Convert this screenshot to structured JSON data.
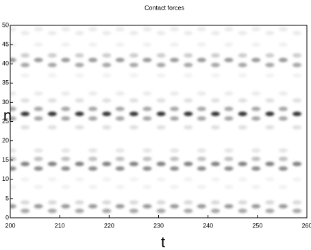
{
  "chart_data": {
    "type": "heatmap",
    "title": "Contact forces",
    "xlabel": "t",
    "ylabel": "n",
    "xlim": [
      200,
      260
    ],
    "ylim": [
      0,
      50
    ],
    "xticks": [
      200,
      210,
      220,
      230,
      240,
      250,
      260
    ],
    "yticks": [
      0,
      5,
      10,
      15,
      20,
      25,
      30,
      35,
      40,
      45,
      50
    ],
    "color": "#000000",
    "rows": [
      {
        "n": 27,
        "shade": 0.8,
        "t": [
          203,
          208.5,
          214,
          219.5,
          225,
          230.5,
          236,
          241.5,
          247,
          252.5,
          258
        ]
      },
      {
        "n": 28.3,
        "shade": 0.35,
        "t": [
          200.3,
          205.7,
          211.2,
          216.7,
          222.2,
          227.7,
          233.2,
          238.7,
          244.2,
          249.7,
          255.2
        ]
      },
      {
        "n": 25.8,
        "shade": 0.35,
        "t": [
          200.3,
          205.7,
          211.2,
          216.7,
          222.2,
          227.7,
          233.2,
          238.7,
          244.2,
          249.7,
          255.2
        ]
      },
      {
        "n": 14,
        "shade": 0.5,
        "t": [
          203,
          208.5,
          214,
          219.5,
          225,
          230.5,
          236,
          241.5,
          247,
          252.5,
          258
        ]
      },
      {
        "n": 15.3,
        "shade": 0.25,
        "t": [
          200.3,
          205.7,
          211.2,
          216.7,
          222.2,
          227.7,
          233.2,
          238.7,
          244.2,
          249.7,
          255.2
        ]
      },
      {
        "n": 12.8,
        "shade": 0.45,
        "t": [
          200.3,
          205.7,
          211.2,
          216.7,
          222.2,
          227.7,
          233.2,
          238.7,
          244.2,
          249.7,
          255.2
        ]
      },
      {
        "n": 41,
        "shade": 0.4,
        "t": [
          200.3,
          205.7,
          211.2,
          216.7,
          222.2,
          227.7,
          233.2,
          238.7,
          244.2,
          249.7,
          255.2
        ]
      },
      {
        "n": 39.7,
        "shade": 0.35,
        "t": [
          203,
          208.5,
          214,
          219.5,
          225,
          230.5,
          236,
          241.5,
          247,
          252.5,
          258
        ]
      },
      {
        "n": 42.2,
        "shade": 0.2,
        "t": [
          203,
          208.5,
          214,
          219.5,
          225,
          230.5,
          236,
          241.5,
          247,
          252.5,
          258
        ]
      },
      {
        "n": 3,
        "shade": 0.4,
        "t": [
          200.3,
          205.7,
          211.2,
          216.7,
          222.2,
          227.7,
          233.2,
          238.7,
          244.2,
          249.7,
          255.2
        ]
      },
      {
        "n": 1.8,
        "shade": 0.35,
        "t": [
          203,
          208.5,
          214,
          219.5,
          225,
          230.5,
          236,
          241.5,
          247,
          252.5,
          258
        ]
      },
      {
        "n": 4,
        "shade": 0.15,
        "t": [
          203,
          208.5,
          214,
          219.5,
          225,
          230.5,
          236,
          241.5,
          247,
          252.5,
          258
        ]
      },
      {
        "n": 30.5,
        "shade": 0.12,
        "t": [
          203,
          208.5,
          214,
          219.5,
          225,
          230.5,
          236,
          241.5,
          247,
          252.5,
          258
        ]
      },
      {
        "n": 23.5,
        "shade": 0.12,
        "t": [
          203,
          208.5,
          214,
          219.5,
          225,
          230.5,
          236,
          241.5,
          247,
          252.5,
          258
        ]
      },
      {
        "n": 32.3,
        "shade": 0.08,
        "t": [
          200.3,
          205.7,
          211.2,
          216.7,
          222.2,
          227.7,
          233.2,
          238.7,
          244.2,
          249.7,
          255.2
        ]
      },
      {
        "n": 17.5,
        "shade": 0.1,
        "t": [
          200.3,
          205.7,
          211.2,
          216.7,
          222.2,
          227.7,
          233.2,
          238.7,
          244.2,
          249.7,
          255.2
        ]
      },
      {
        "n": 48,
        "shade": 0.08,
        "t": [
          203,
          208.5,
          214,
          219.5,
          225,
          230.5,
          236,
          241.5,
          247,
          252.5,
          258
        ]
      },
      {
        "n": 49,
        "shade": 0.08,
        "t": [
          200.3,
          205.7,
          211.2,
          216.7,
          222.2,
          227.7,
          233.2,
          238.7,
          244.2,
          249.7,
          255.2
        ]
      },
      {
        "n": 45,
        "shade": 0.06,
        "t": [
          200.3,
          205.7,
          211.2,
          216.7,
          222.2,
          227.7,
          233.2,
          238.7,
          244.2,
          249.7,
          255.2
        ]
      },
      {
        "n": 37,
        "shade": 0.05,
        "t": [
          203,
          208.5,
          214,
          219.5,
          225,
          230.5,
          236,
          241.5,
          247,
          252.5,
          258
        ]
      },
      {
        "n": 8,
        "shade": 0.05,
        "t": [
          200.3,
          205.7,
          211.2,
          216.7,
          222.2,
          227.7,
          233.2,
          238.7,
          244.2,
          249.7,
          255.2
        ]
      },
      {
        "n": 10,
        "shade": 0.05,
        "t": [
          203,
          208.5,
          214,
          219.5,
          225,
          230.5,
          236,
          241.5,
          247,
          252.5,
          258
        ]
      }
    ]
  }
}
